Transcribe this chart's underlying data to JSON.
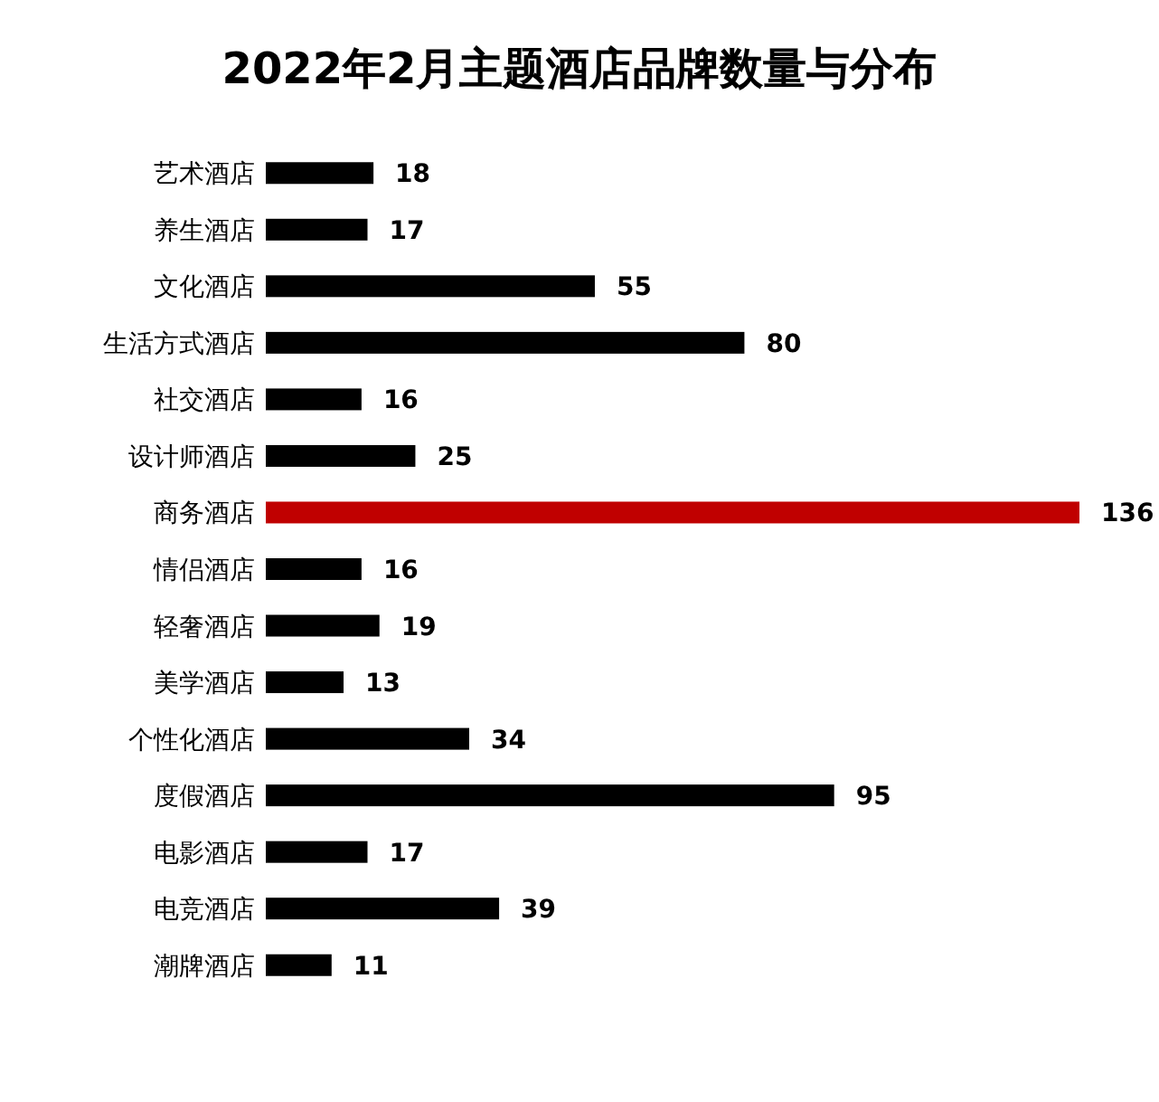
{
  "chart_data": {
    "type": "bar",
    "orientation": "horizontal",
    "title": "2022年2月主题酒店品牌数量与分布",
    "categories": [
      "艺术酒店",
      "养生酒店",
      "文化酒店",
      "生活方式酒店",
      "社交酒店",
      "设计师酒店",
      "商务酒店",
      "情侣酒店",
      "轻奢酒店",
      "美学酒店",
      "个性化酒店",
      "度假酒店",
      "电影酒店",
      "电竞酒店",
      "潮牌酒店"
    ],
    "values": [
      18,
      17,
      55,
      80,
      16,
      25,
      136,
      16,
      19,
      13,
      34,
      95,
      17,
      39,
      11
    ],
    "colors": [
      "#000000",
      "#000000",
      "#000000",
      "#000000",
      "#000000",
      "#000000",
      "#c00000",
      "#000000",
      "#000000",
      "#000000",
      "#000000",
      "#000000",
      "#000000",
      "#000000",
      "#000000"
    ],
    "data_labels": true
  }
}
